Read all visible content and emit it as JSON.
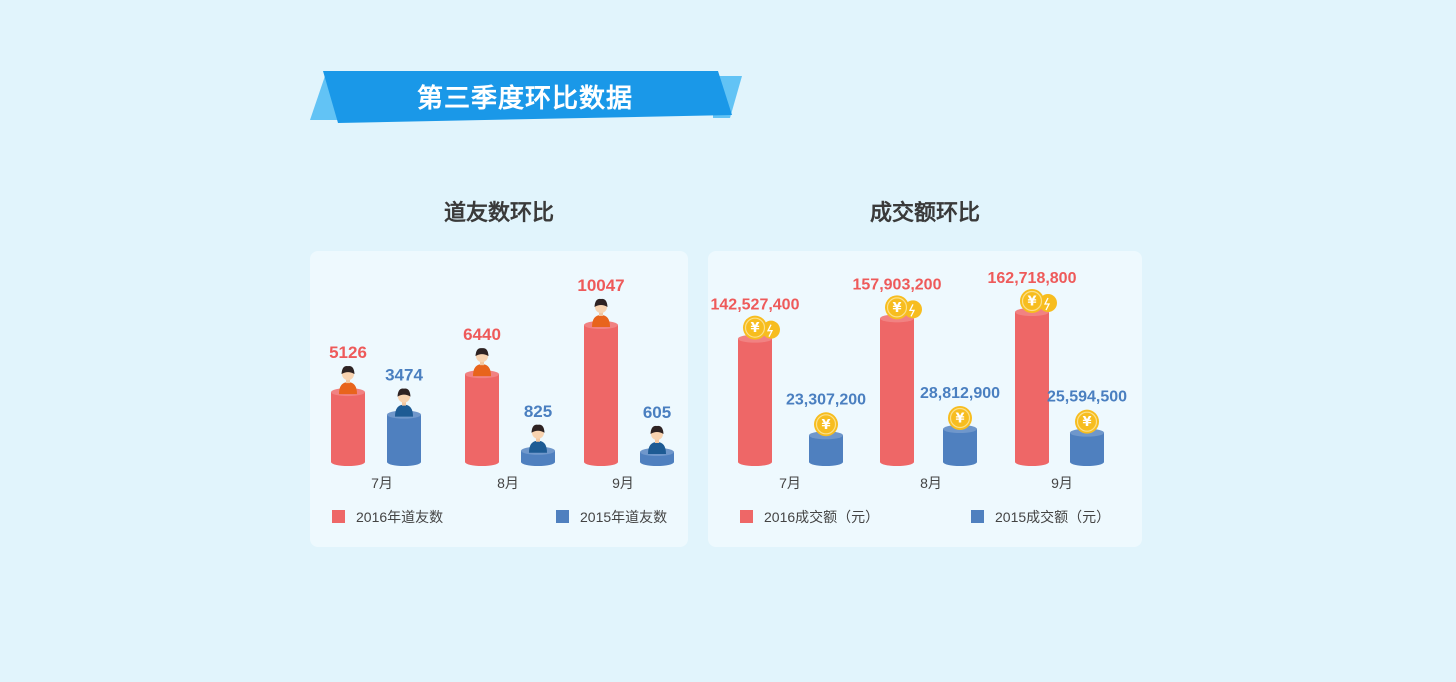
{
  "page": {
    "title": "第三季度环比数据"
  },
  "colors": {
    "background": "#e1f4fc",
    "banner": "#1a98e8",
    "banner_light": "#62c3f5",
    "series_2016": "#ee6767",
    "series_2015": "#4f80bf",
    "coin": "#f7bd1f"
  },
  "chart_data": [
    {
      "type": "bar",
      "title": "道友数环比",
      "categories": [
        "7月",
        "8月",
        "9月"
      ],
      "series": [
        {
          "name": "2016年道友数",
          "values": [
            5126,
            6440,
            10047
          ],
          "color": "#ee6767",
          "icon": "person-icon",
          "value_labels": [
            "5126",
            "6440",
            "10047"
          ]
        },
        {
          "name": "2015年道友数",
          "values": [
            3474,
            825,
            605
          ],
          "color": "#4f80bf",
          "icon": "person-icon",
          "value_labels": [
            "3474",
            "825",
            "605"
          ]
        }
      ],
      "legend_position": "bottom",
      "grid": false,
      "ylim": [
        0,
        11000
      ]
    },
    {
      "type": "bar",
      "title": "成交额环比",
      "categories": [
        "7月",
        "8月",
        "9月"
      ],
      "series": [
        {
          "name": "2016成交额（元）",
          "values": [
            142527400,
            157903200,
            162718800
          ],
          "color": "#ee6767",
          "icon": "coins-icon",
          "value_labels": [
            "142,527,400",
            "157,903,200",
            "162,718,800"
          ]
        },
        {
          "name": "2015成交额（元）",
          "values": [
            23307200,
            28812900,
            25594500
          ],
          "color": "#4f80bf",
          "icon": "coin-icon",
          "value_labels": [
            "23,307,200",
            "28,812,900",
            "25,594,500"
          ]
        }
      ],
      "legend_position": "bottom",
      "grid": false
    }
  ]
}
